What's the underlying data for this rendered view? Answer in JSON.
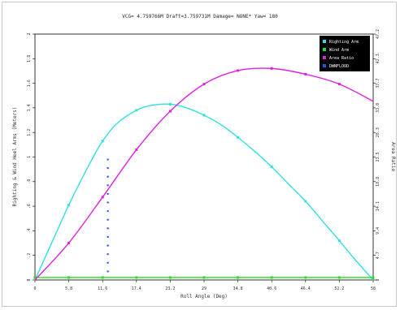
{
  "chart_data": {
    "type": "line",
    "title": "VCG= 4.759766M Draft=3.759731M Damage= NONE* Yaw= 180",
    "xlabel": "Roll Angle (Deg)",
    "ylabel_left": "Righting & Wind Heel Arms (Meters)",
    "ylabel_right": "Area Ratio",
    "xlim": [
      0,
      58
    ],
    "ylim_left": [
      0,
      2.0
    ],
    "ylim_right": [
      0,
      47.2
    ],
    "x_ticks": [
      "0",
      "5.8",
      "11.6",
      "17.4",
      "23.2",
      "29",
      "34.8",
      "40.6",
      "46.4",
      "52.2",
      "58"
    ],
    "y_ticks_left": [
      "0",
      ".2",
      ".4",
      ".6",
      ".8",
      "1",
      "1.2",
      "1.4",
      "1.6",
      "1.8",
      "2"
    ],
    "y_ticks_right": [
      "0",
      "4.7",
      "9.4",
      "14.1",
      "18.8",
      "23.5",
      "28.3",
      "33.0",
      "37.7",
      "42.3",
      "47.2"
    ],
    "legend_placement": "top-right",
    "legend_bg": "#000000",
    "grid": false,
    "series": [
      {
        "name": "Righting Arm",
        "color": "#33e0e0",
        "axis": "left",
        "x": [
          0,
          2,
          4,
          5.8,
          8,
          10,
          11.6,
          14,
          17.4,
          20,
          23.2,
          26,
          29,
          32,
          34.8,
          37.6,
          40.6,
          43.5,
          46.4,
          49.3,
          52.2,
          55,
          58
        ],
        "y": [
          0,
          0.21,
          0.42,
          0.61,
          0.82,
          1.0,
          1.13,
          1.27,
          1.38,
          1.42,
          1.43,
          1.4,
          1.34,
          1.26,
          1.16,
          1.05,
          0.92,
          0.78,
          0.64,
          0.48,
          0.32,
          0.16,
          0
        ],
        "markers_x": [
          5.8,
          11.6,
          17.4,
          23.2,
          29,
          34.8,
          40.6,
          46.4,
          52.2
        ]
      },
      {
        "name": "Wind Arm",
        "color": "#22dd22",
        "axis": "left",
        "x": [
          0,
          5.8,
          11.6,
          17.4,
          23.2,
          29,
          34.8,
          40.6,
          46.4,
          52.2,
          58
        ],
        "y": [
          0.02,
          0.02,
          0.02,
          0.02,
          0.02,
          0.02,
          0.02,
          0.02,
          0.02,
          0.02,
          0.02
        ],
        "markers_x": [
          0,
          5.8,
          11.6,
          17.4,
          23.2,
          29,
          34.8,
          40.6,
          46.4,
          52.2,
          58
        ]
      },
      {
        "name": "Area Ratio",
        "color": "#e020e0",
        "axis": "right",
        "x": [
          0,
          5.8,
          11.6,
          17.4,
          23.2,
          29,
          34.8,
          40.6,
          46.4,
          52.2,
          58
        ],
        "y": [
          0,
          7.1,
          15.9,
          25.0,
          32.4,
          37.6,
          40.2,
          40.6,
          39.5,
          37.6,
          34.3
        ],
        "markers_x": [
          5.8,
          11.6,
          17.4,
          23.2,
          29,
          34.8,
          40.6,
          46.4,
          52.2
        ]
      },
      {
        "name": "DWNFLOOD",
        "color": "#2255ee",
        "axis": "left",
        "x": [
          12.5,
          12.5,
          12.5,
          12.5,
          12.5,
          12.5,
          12.5,
          12.5,
          12.5,
          12.5,
          12.5,
          12.5,
          12.5,
          12.5
        ],
        "y": [
          0.07,
          0.14,
          0.21,
          0.28,
          0.35,
          0.42,
          0.49,
          0.56,
          0.63,
          0.7,
          0.77,
          0.84,
          0.91,
          0.98
        ],
        "markers_x": []
      }
    ]
  }
}
